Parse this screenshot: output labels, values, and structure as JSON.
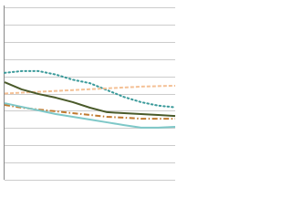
{
  "chart_data": {
    "type": "line",
    "x": [
      0,
      1,
      2,
      3,
      4,
      5,
      6,
      7,
      8,
      9,
      10
    ],
    "xlim": [
      0,
      10
    ],
    "ylim": [
      0,
      100
    ],
    "yticks": [
      0,
      10,
      20,
      30,
      40,
      50,
      60,
      70,
      80,
      90,
      100
    ],
    "grid": true,
    "series": [
      {
        "color": "#3a9a9a",
        "dash": "dotted",
        "values": [
          62,
          63,
          63,
          61,
          58,
          56,
          52,
          48,
          45,
          43,
          42
        ]
      },
      {
        "color": "#f4c095",
        "dash": "dashed",
        "values": [
          50,
          50.5,
          51,
          51.5,
          52,
          52.5,
          53,
          53.5,
          54,
          54.3,
          54.5
        ]
      },
      {
        "color": "#4a5a2a",
        "dash": "solid",
        "values": [
          56.6,
          52.4,
          49.7,
          47.6,
          45,
          41.8,
          39.2,
          38.6,
          38.1,
          37.6,
          37
        ]
      },
      {
        "color": "#c07a30",
        "dash": "dashdot",
        "values": [
          43.4,
          41.8,
          40.7,
          39.7,
          38.6,
          37.6,
          36.5,
          36,
          35.4,
          35.4,
          35.4
        ]
      },
      {
        "color": "#7ec8c8",
        "dash": "solid",
        "values": [
          44.4,
          42.3,
          40.2,
          38.1,
          36.5,
          34.9,
          33.3,
          31.7,
          30.2,
          30.2,
          30.7
        ]
      }
    ]
  }
}
